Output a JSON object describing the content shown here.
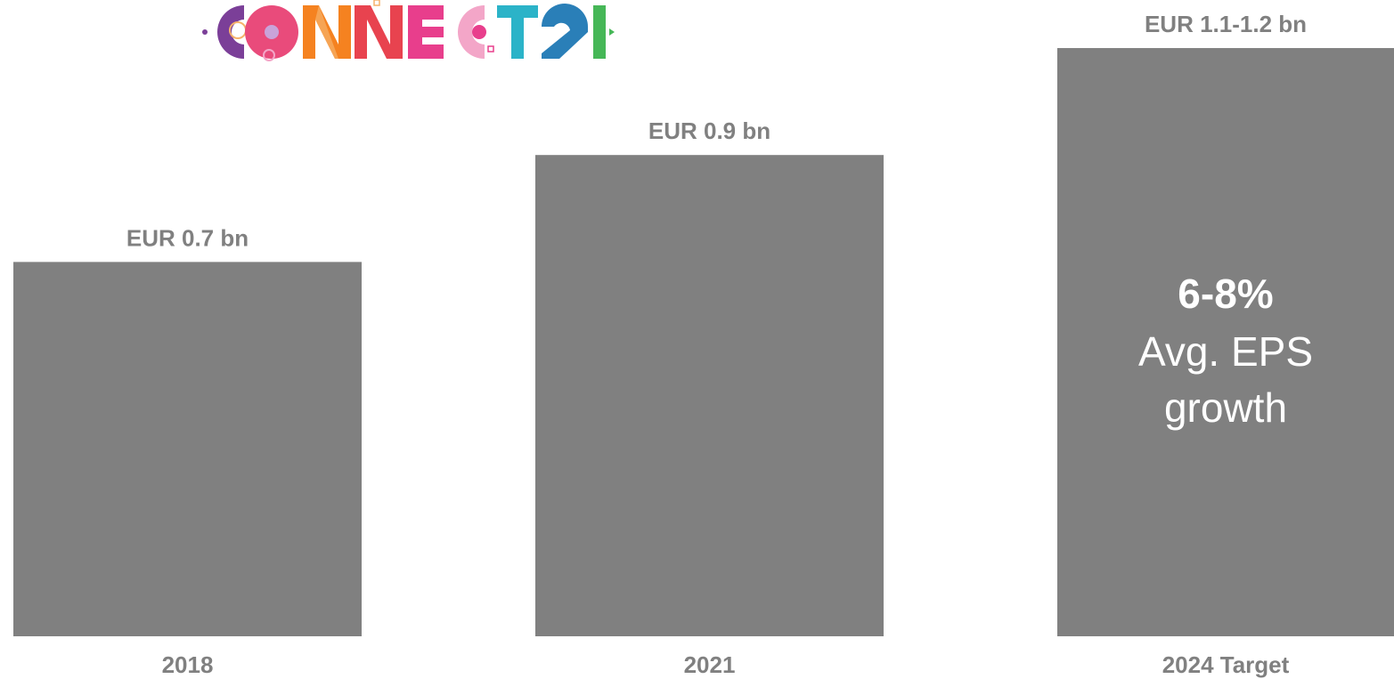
{
  "logo": {
    "text": "CONNECT 21",
    "colors": [
      "#7b3f98",
      "#e94b7b",
      "#f58220",
      "#f6b26b",
      "#e8434f",
      "#e83e8c",
      "#f3a6c8",
      "#2bb3c8",
      "#2a7fb8",
      "#46b757"
    ]
  },
  "chart_data": {
    "type": "bar",
    "categories": [
      "2018",
      "2021",
      "2024 Target"
    ],
    "values": [
      0.7,
      0.9,
      1.1
    ],
    "value_labels": [
      "EUR 0.7 bn",
      "EUR 0.9 bn",
      "EUR 1.1-1.2 bn"
    ],
    "bar_color": "#808080",
    "label_color": "#808080",
    "ylim": [
      0,
      1.1
    ],
    "grid": false,
    "annotation": {
      "bar_index": 2,
      "highlight": "6-8%",
      "lines": [
        "Avg. EPS",
        "growth"
      ],
      "color": "#ffffff"
    }
  }
}
